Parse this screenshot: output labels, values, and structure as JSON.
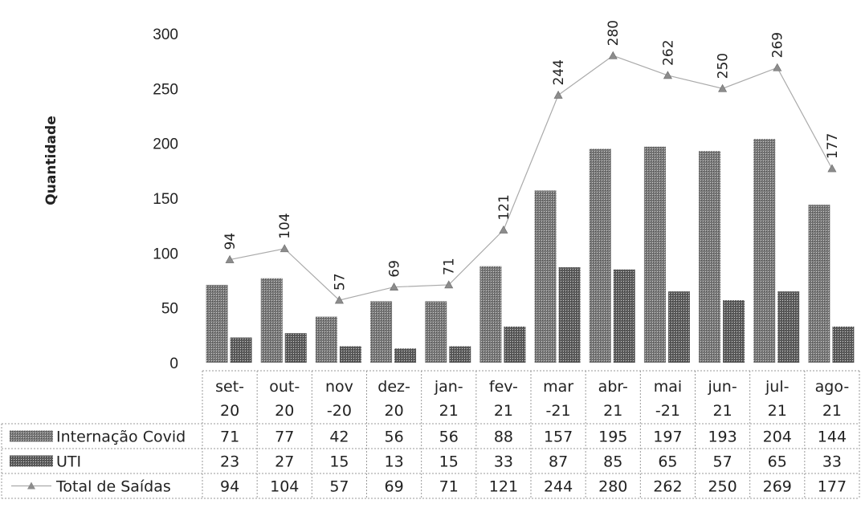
{
  "chart_data": {
    "type": "bar",
    "ylabel": "Quantidade",
    "ylim": [
      0,
      300
    ],
    "yticks": [
      0,
      50,
      100,
      150,
      200,
      250,
      300
    ],
    "categories": [
      [
        "set-",
        "20"
      ],
      [
        "out-",
        "20"
      ],
      [
        "nov",
        "-20"
      ],
      [
        "dez-",
        "20"
      ],
      [
        "jan-",
        "21"
      ],
      [
        "fev-",
        "21"
      ],
      [
        "mar",
        "-21"
      ],
      [
        "abr-",
        "21"
      ],
      [
        "mai",
        "-21"
      ],
      [
        "jun-",
        "21"
      ],
      [
        "jul-",
        "21"
      ],
      [
        "ago-",
        "21"
      ]
    ],
    "series": [
      {
        "name": "Internação Covid",
        "type": "bar",
        "color": "#7a7a7a",
        "values": [
          71,
          77,
          42,
          56,
          56,
          88,
          157,
          195,
          197,
          193,
          204,
          144
        ]
      },
      {
        "name": "UTI",
        "type": "bar",
        "color": "#5e5e5e",
        "values": [
          23,
          27,
          15,
          13,
          15,
          33,
          87,
          85,
          65,
          57,
          65,
          33
        ]
      },
      {
        "name": "Total de Saídas",
        "type": "line",
        "color": "#aaaaaa",
        "values": [
          94,
          104,
          57,
          69,
          71,
          121,
          244,
          280,
          262,
          250,
          269,
          177
        ]
      }
    ],
    "legend": "data-table",
    "grid": false
  }
}
